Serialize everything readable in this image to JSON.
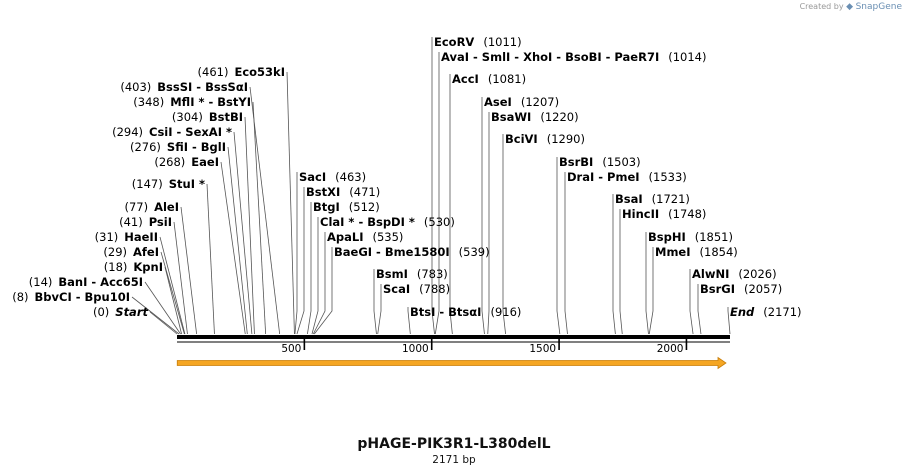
{
  "credit": {
    "prefix": "Created by",
    "brand": "SnapGene"
  },
  "map": {
    "title": "pHAGE-PIK3R1-L380delL",
    "subtitle": "2171 bp",
    "length": 2171,
    "ticks": [
      {
        "value": 500,
        "label": "500"
      },
      {
        "value": 1000,
        "label": "1000"
      },
      {
        "value": 1500,
        "label": "1500"
      },
      {
        "value": 2000,
        "label": "2000"
      }
    ],
    "feature": {
      "name": "orf-arrow",
      "start": 1,
      "end": 2171,
      "color": "#f5a623",
      "outline": "#c77d0a"
    },
    "sites": [
      {
        "side": "left",
        "pos": 0,
        "pos_label": "(0)",
        "name": "Start",
        "italic": true
      },
      {
        "side": "left",
        "pos": 8,
        "pos_label": "(8)",
        "name": "BbvCI  -  Bpu10I"
      },
      {
        "side": "left",
        "pos": 14,
        "pos_label": "(14)",
        "name": "BanI  -  Acc65I"
      },
      {
        "side": "left",
        "pos": 18,
        "pos_label": "(18)",
        "name": "KpnI"
      },
      {
        "side": "left",
        "pos": 29,
        "pos_label": "(29)",
        "name": "AfeI"
      },
      {
        "side": "left",
        "pos": 31,
        "pos_label": "(31)",
        "name": "HaeII"
      },
      {
        "side": "left",
        "pos": 41,
        "pos_label": "(41)",
        "name": "PsiI"
      },
      {
        "side": "left",
        "pos": 77,
        "pos_label": "(77)",
        "name": "AleI"
      },
      {
        "side": "left",
        "pos": 147,
        "pos_label": "(147)",
        "name": "StuI *"
      },
      {
        "side": "left",
        "pos": 268,
        "pos_label": "(268)",
        "name": "EaeI"
      },
      {
        "side": "left",
        "pos": 276,
        "pos_label": "(276)",
        "name": "SfiI  -  BglI"
      },
      {
        "side": "left",
        "pos": 294,
        "pos_label": "(294)",
        "name": "CsiI  -  SexAI *"
      },
      {
        "side": "left",
        "pos": 304,
        "pos_label": "(304)",
        "name": "BstBI"
      },
      {
        "side": "left",
        "pos": 348,
        "pos_label": "(348)",
        "name": "MflI *  -  BstYI"
      },
      {
        "side": "left",
        "pos": 403,
        "pos_label": "(403)",
        "name": "BssSI  -  BssSαI"
      },
      {
        "side": "left",
        "pos": 461,
        "pos_label": "(461)",
        "name": "Eco53kI"
      },
      {
        "side": "right",
        "pos": 463,
        "pos_label": "(463)",
        "name": "SacI"
      },
      {
        "side": "right",
        "pos": 471,
        "pos_label": "(471)",
        "name": "BstXI"
      },
      {
        "side": "right",
        "pos": 512,
        "pos_label": "(512)",
        "name": "BtgI"
      },
      {
        "side": "right",
        "pos": 530,
        "pos_label": "(530)",
        "name": "ClaI *  -  BspDI *"
      },
      {
        "side": "right",
        "pos": 535,
        "pos_label": "(535)",
        "name": "ApaLI"
      },
      {
        "side": "right",
        "pos": 539,
        "pos_label": "(539)",
        "name": "BaeGI  -  Bme1580I"
      },
      {
        "side": "right",
        "pos": 783,
        "pos_label": "(783)",
        "name": "BsmI"
      },
      {
        "side": "right",
        "pos": 788,
        "pos_label": "(788)",
        "name": "ScaI"
      },
      {
        "side": "right",
        "pos": 916,
        "pos_label": "(916)",
        "name": "BtsI  -  BtsαI"
      },
      {
        "side": "right",
        "pos": 1011,
        "pos_label": "(1011)",
        "name": "EcoRV"
      },
      {
        "side": "right",
        "pos": 1014,
        "pos_label": "(1014)",
        "name": "AvaI  -  SmlI  -  XhoI  -  BsoBI  -  PaeR7I"
      },
      {
        "side": "right",
        "pos": 1081,
        "pos_label": "(1081)",
        "name": "AccI"
      },
      {
        "side": "right",
        "pos": 1207,
        "pos_label": "(1207)",
        "name": "AseI"
      },
      {
        "side": "right",
        "pos": 1220,
        "pos_label": "(1220)",
        "name": "BsaWI"
      },
      {
        "side": "right",
        "pos": 1290,
        "pos_label": "(1290)",
        "name": "BciVI"
      },
      {
        "side": "right",
        "pos": 1503,
        "pos_label": "(1503)",
        "name": "BsrBI"
      },
      {
        "side": "right",
        "pos": 1533,
        "pos_label": "(1533)",
        "name": "DraI  -  PmeI"
      },
      {
        "side": "right",
        "pos": 1721,
        "pos_label": "(1721)",
        "name": "BsaI"
      },
      {
        "side": "right",
        "pos": 1748,
        "pos_label": "(1748)",
        "name": "HincII"
      },
      {
        "side": "right",
        "pos": 1851,
        "pos_label": "(1851)",
        "name": "BspHI"
      },
      {
        "side": "right",
        "pos": 1854,
        "pos_label": "(1854)",
        "name": "MmeI"
      },
      {
        "side": "right",
        "pos": 2026,
        "pos_label": "(2026)",
        "name": "AlwNI"
      },
      {
        "side": "right",
        "pos": 2057,
        "pos_label": "(2057)",
        "name": "BsrGI"
      },
      {
        "side": "right",
        "pos": 2171,
        "pos_label": "(2171)",
        "name": "End",
        "italic": true
      }
    ]
  }
}
